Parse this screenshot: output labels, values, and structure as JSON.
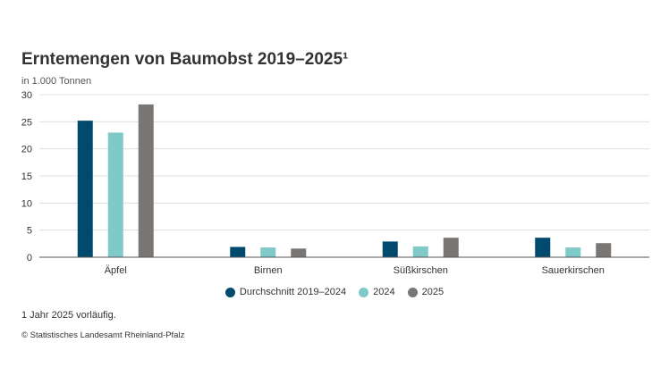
{
  "chart_data": {
    "type": "bar",
    "title": "Erntemengen von Baumobst 2019–2025¹",
    "subtitle": "in 1.000 Tonnen",
    "categories": [
      "Äpfel",
      "Birnen",
      "Süßkirschen",
      "Sauerkirschen"
    ],
    "series": [
      {
        "name": "Durchschnitt 2019–2024",
        "values": [
          25.2,
          1.9,
          2.9,
          3.6
        ],
        "color": "#004a6e"
      },
      {
        "name": "2024",
        "values": [
          23.0,
          1.8,
          2.0,
          1.8
        ],
        "color": "#7fc9c9"
      },
      {
        "name": "2025",
        "values": [
          28.2,
          1.6,
          3.6,
          2.6
        ],
        "color": "#7a7674"
      }
    ],
    "ylim": [
      0,
      30
    ],
    "yticks": [
      0,
      5,
      10,
      15,
      20,
      25,
      30
    ],
    "grid": true,
    "legend_position": "bottom"
  },
  "footnote": "1 Jahr 2025 vorläufig.",
  "source": "© Statistisches Landesamt Rheinland-Pfalz"
}
